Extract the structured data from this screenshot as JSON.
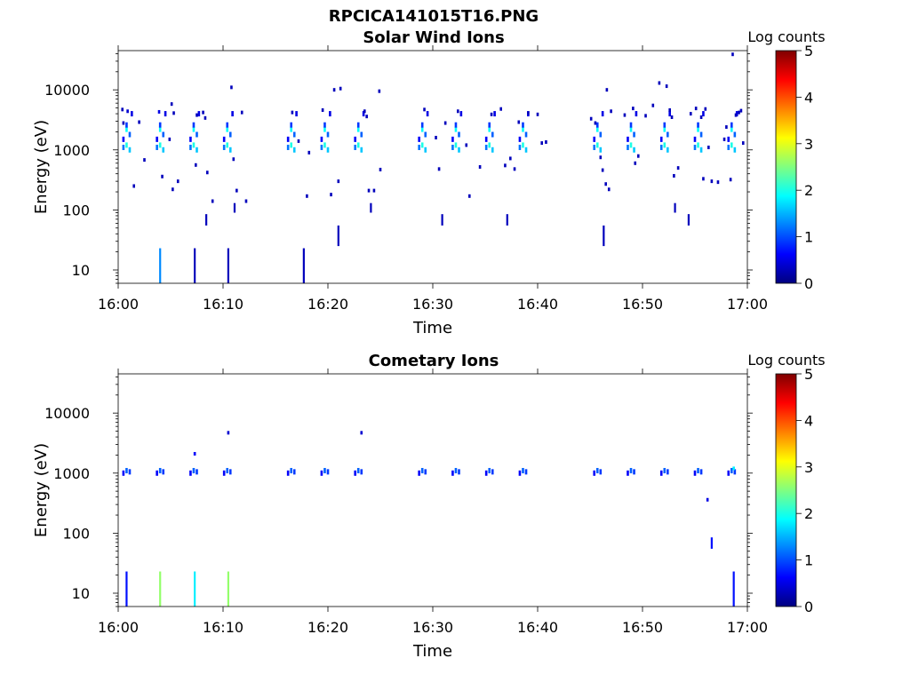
{
  "figure_title": "RPCICA141015T16.PNG",
  "colors": {
    "scale": [
      "#00007f",
      "#0000ff",
      "#0080ff",
      "#00ffff",
      "#80ff80",
      "#ffff00",
      "#ff8000",
      "#ff0000",
      "#7f0000"
    ],
    "axis": "#000000",
    "background": "#ffffff"
  },
  "chart_data": [
    {
      "type": "heatmap",
      "title": "Solar Wind Ions",
      "xlabel": "Time",
      "ylabel": "Energy (eV)",
      "x_ticks": [
        "16:00",
        "16:10",
        "16:20",
        "16:30",
        "16:40",
        "16:50",
        "17:00"
      ],
      "xlim_minutes": [
        0,
        60
      ],
      "y_scale": "log",
      "ylim": [
        6,
        45000
      ],
      "y_ticks": [
        10,
        100,
        1000,
        10000
      ],
      "y_tick_labels": [
        "10",
        "100",
        "1000",
        "10000"
      ],
      "colorbar": {
        "label": "Log counts",
        "range": [
          0,
          5
        ],
        "ticks": [
          "0",
          "1",
          "2",
          "3",
          "4",
          "5"
        ]
      },
      "grid": false,
      "lines": [
        {
          "t": 4.0,
          "e0": 6,
          "e1": 23,
          "v": 1.3
        },
        {
          "t": 7.3,
          "e0": 6,
          "e1": 23,
          "v": 0.3
        },
        {
          "t": 10.5,
          "e0": 6,
          "e1": 23,
          "v": 0.3
        },
        {
          "t": 17.7,
          "e0": 6,
          "e1": 23,
          "v": 0.3
        },
        {
          "t": 8.4,
          "e0": 55,
          "e1": 85,
          "v": 0.3
        },
        {
          "t": 11.1,
          "e0": 90,
          "e1": 130,
          "v": 0.3
        },
        {
          "t": 21.0,
          "e0": 25,
          "e1": 55,
          "v": 0.3
        },
        {
          "t": 24.1,
          "e0": 90,
          "e1": 130,
          "v": 0.3
        },
        {
          "t": 30.9,
          "e0": 55,
          "e1": 85,
          "v": 0.3
        },
        {
          "t": 37.1,
          "e0": 55,
          "e1": 85,
          "v": 0.3
        },
        {
          "t": 46.3,
          "e0": 25,
          "e1": 55,
          "v": 0.3
        },
        {
          "t": 54.4,
          "e0": 55,
          "e1": 85,
          "v": 0.3
        },
        {
          "t": 53.1,
          "e0": 90,
          "e1": 130,
          "v": 0.3
        }
      ],
      "bursts": [
        0.8,
        4.0,
        7.2,
        10.4,
        16.5,
        19.7,
        22.9,
        29.0,
        32.2,
        35.4,
        38.6,
        45.7,
        48.9,
        52.1,
        55.3,
        58.5
      ],
      "burst_cells": [
        {
          "dt": 0,
          "e": 1200,
          "v": 2.0
        },
        {
          "dt": 0.3,
          "e": 1000,
          "v": 1.6
        },
        {
          "dt": -0.3,
          "e": 1100,
          "v": 1.2
        },
        {
          "dt": 0,
          "e": 2200,
          "v": 1.9
        },
        {
          "dt": 0.3,
          "e": 1800,
          "v": 1.1
        },
        {
          "dt": 0,
          "e": 2600,
          "v": 0.9
        },
        {
          "dt": -0.3,
          "e": 1500,
          "v": 0.6
        },
        {
          "dt": 0.5,
          "e": 4000,
          "v": 0.5
        }
      ],
      "scatter": [
        {
          "t": 0.4,
          "e": 4700,
          "v": 0.3
        },
        {
          "t": 0.9,
          "e": 4400,
          "v": 0.4
        },
        {
          "t": 0.5,
          "e": 2800,
          "v": 0.3
        },
        {
          "t": 1.5,
          "e": 250,
          "v": 0.3
        },
        {
          "t": 2.0,
          "e": 2900,
          "v": 0.3
        },
        {
          "t": 2.5,
          "e": 680,
          "v": 0.3
        },
        {
          "t": 3.9,
          "e": 4300,
          "v": 0.5
        },
        {
          "t": 4.2,
          "e": 360,
          "v": 0.3
        },
        {
          "t": 5.1,
          "e": 5800,
          "v": 0.3
        },
        {
          "t": 5.3,
          "e": 4100,
          "v": 0.3
        },
        {
          "t": 5.7,
          "e": 300,
          "v": 0.3
        },
        {
          "t": 4.9,
          "e": 1500,
          "v": 0.3
        },
        {
          "t": 5.2,
          "e": 220,
          "v": 0.3
        },
        {
          "t": 7.5,
          "e": 3800,
          "v": 0.3
        },
        {
          "t": 8.1,
          "e": 4200,
          "v": 0.3
        },
        {
          "t": 8.3,
          "e": 3400,
          "v": 0.3
        },
        {
          "t": 7.4,
          "e": 560,
          "v": 0.3
        },
        {
          "t": 8.5,
          "e": 420,
          "v": 0.3
        },
        {
          "t": 9.0,
          "e": 140,
          "v": 0.3
        },
        {
          "t": 10.8,
          "e": 11000,
          "v": 0.3
        },
        {
          "t": 11.0,
          "e": 700,
          "v": 0.3
        },
        {
          "t": 11.3,
          "e": 210,
          "v": 0.3
        },
        {
          "t": 11.8,
          "e": 4200,
          "v": 0.3
        },
        {
          "t": 12.2,
          "e": 140,
          "v": 0.3
        },
        {
          "t": 16.6,
          "e": 4200,
          "v": 0.3
        },
        {
          "t": 17.2,
          "e": 1400,
          "v": 0.3
        },
        {
          "t": 18.0,
          "e": 170,
          "v": 0.3
        },
        {
          "t": 18.2,
          "e": 900,
          "v": 0.3
        },
        {
          "t": 19.5,
          "e": 4600,
          "v": 0.3
        },
        {
          "t": 20.3,
          "e": 180,
          "v": 0.3
        },
        {
          "t": 20.6,
          "e": 10000,
          "v": 0.3
        },
        {
          "t": 21.2,
          "e": 10500,
          "v": 0.3
        },
        {
          "t": 21.0,
          "e": 300,
          "v": 0.3
        },
        {
          "t": 23.5,
          "e": 4400,
          "v": 0.3
        },
        {
          "t": 23.7,
          "e": 3600,
          "v": 0.3
        },
        {
          "t": 23.9,
          "e": 210,
          "v": 0.3
        },
        {
          "t": 24.4,
          "e": 210,
          "v": 0.3
        },
        {
          "t": 24.9,
          "e": 9500,
          "v": 0.3
        },
        {
          "t": 25.0,
          "e": 470,
          "v": 0.3
        },
        {
          "t": 29.2,
          "e": 4700,
          "v": 0.3
        },
        {
          "t": 30.3,
          "e": 1600,
          "v": 0.3
        },
        {
          "t": 30.6,
          "e": 480,
          "v": 0.3
        },
        {
          "t": 31.2,
          "e": 2800,
          "v": 0.3
        },
        {
          "t": 32.4,
          "e": 4400,
          "v": 0.3
        },
        {
          "t": 33.2,
          "e": 1200,
          "v": 0.3
        },
        {
          "t": 33.5,
          "e": 170,
          "v": 0.3
        },
        {
          "t": 34.5,
          "e": 520,
          "v": 0.3
        },
        {
          "t": 35.6,
          "e": 3900,
          "v": 0.3
        },
        {
          "t": 36.5,
          "e": 4800,
          "v": 0.3
        },
        {
          "t": 36.9,
          "e": 550,
          "v": 0.3
        },
        {
          "t": 37.4,
          "e": 720,
          "v": 0.3
        },
        {
          "t": 37.8,
          "e": 480,
          "v": 0.3
        },
        {
          "t": 38.2,
          "e": 2900,
          "v": 0.3
        },
        {
          "t": 39.1,
          "e": 4100,
          "v": 0.3
        },
        {
          "t": 40.4,
          "e": 1300,
          "v": 0.3
        },
        {
          "t": 40.0,
          "e": 3900,
          "v": 0.3
        },
        {
          "t": 40.8,
          "e": 1350,
          "v": 0.3
        },
        {
          "t": 45.1,
          "e": 3300,
          "v": 0.3
        },
        {
          "t": 45.5,
          "e": 2800,
          "v": 0.3
        },
        {
          "t": 46.0,
          "e": 750,
          "v": 0.3
        },
        {
          "t": 46.2,
          "e": 460,
          "v": 0.3
        },
        {
          "t": 46.6,
          "e": 10000,
          "v": 0.3
        },
        {
          "t": 47.0,
          "e": 4400,
          "v": 0.3
        },
        {
          "t": 46.8,
          "e": 220,
          "v": 0.3
        },
        {
          "t": 46.5,
          "e": 270,
          "v": 0.3
        },
        {
          "t": 48.3,
          "e": 3800,
          "v": 0.3
        },
        {
          "t": 49.1,
          "e": 4900,
          "v": 0.3
        },
        {
          "t": 49.6,
          "e": 790,
          "v": 0.3
        },
        {
          "t": 50.3,
          "e": 3700,
          "v": 0.3
        },
        {
          "t": 49.3,
          "e": 600,
          "v": 0.3
        },
        {
          "t": 51.0,
          "e": 5500,
          "v": 0.3
        },
        {
          "t": 51.6,
          "e": 13000,
          "v": 0.3
        },
        {
          "t": 52.3,
          "e": 11500,
          "v": 0.3
        },
        {
          "t": 52.6,
          "e": 4600,
          "v": 0.3
        },
        {
          "t": 52.8,
          "e": 3500,
          "v": 0.3
        },
        {
          "t": 53.0,
          "e": 370,
          "v": 0.3
        },
        {
          "t": 53.4,
          "e": 500,
          "v": 0.3
        },
        {
          "t": 54.6,
          "e": 4000,
          "v": 0.3
        },
        {
          "t": 55.1,
          "e": 4900,
          "v": 0.3
        },
        {
          "t": 55.6,
          "e": 3500,
          "v": 0.3
        },
        {
          "t": 56.0,
          "e": 4800,
          "v": 0.3
        },
        {
          "t": 56.3,
          "e": 1100,
          "v": 0.3
        },
        {
          "t": 55.8,
          "e": 330,
          "v": 0.3
        },
        {
          "t": 56.6,
          "e": 300,
          "v": 0.3
        },
        {
          "t": 57.2,
          "e": 290,
          "v": 0.3
        },
        {
          "t": 57.8,
          "e": 1500,
          "v": 0.3
        },
        {
          "t": 58.0,
          "e": 2400,
          "v": 0.3
        },
        {
          "t": 58.4,
          "e": 320,
          "v": 0.3
        },
        {
          "t": 58.9,
          "e": 3800,
          "v": 0.3
        },
        {
          "t": 59.2,
          "e": 4200,
          "v": 0.3
        },
        {
          "t": 59.6,
          "e": 1300,
          "v": 0.3
        },
        {
          "t": 58.6,
          "e": 39000,
          "v": 0.3
        },
        {
          "t": 59.4,
          "e": 4500,
          "v": 0.3
        }
      ]
    },
    {
      "type": "heatmap",
      "title": "Cometary Ions",
      "xlabel": "Time",
      "ylabel": "Energy (eV)",
      "x_ticks": [
        "16:00",
        "16:10",
        "16:20",
        "16:30",
        "16:40",
        "16:50",
        "17:00"
      ],
      "xlim_minutes": [
        0,
        60
      ],
      "y_scale": "log",
      "ylim": [
        6,
        45000
      ],
      "y_ticks": [
        10,
        100,
        1000,
        10000
      ],
      "y_tick_labels": [
        "10",
        "100",
        "1000",
        "10000"
      ],
      "colorbar": {
        "label": "Log counts",
        "range": [
          0,
          5
        ],
        "ticks": [
          "0",
          "1",
          "2",
          "3",
          "4",
          "5"
        ]
      },
      "grid": false,
      "lines": [
        {
          "t": 0.8,
          "e0": 6,
          "e1": 23,
          "v": 0.7
        },
        {
          "t": 4.0,
          "e0": 6,
          "e1": 23,
          "v": 2.6
        },
        {
          "t": 7.3,
          "e0": 6,
          "e1": 23,
          "v": 1.8
        },
        {
          "t": 10.5,
          "e0": 6,
          "e1": 23,
          "v": 2.6
        },
        {
          "t": 58.7,
          "e0": 6,
          "e1": 23,
          "v": 0.7
        },
        {
          "t": 56.6,
          "e0": 55,
          "e1": 85,
          "v": 0.7
        }
      ],
      "bursts": [
        0.8,
        4.0,
        7.2,
        10.4,
        16.5,
        19.7,
        22.9,
        29.0,
        32.2,
        35.4,
        38.6,
        45.7,
        48.9,
        52.1,
        55.3,
        58.5
      ],
      "burst_cells": [
        {
          "dt": 0,
          "e": 1100,
          "v": 1.1
        },
        {
          "dt": 0.3,
          "e": 1050,
          "v": 0.9
        },
        {
          "dt": -0.3,
          "e": 1000,
          "v": 0.6
        }
      ],
      "scatter": [
        {
          "t": 7.3,
          "e": 2100,
          "v": 0.6
        },
        {
          "t": 10.5,
          "e": 4700,
          "v": 0.4
        },
        {
          "t": 23.2,
          "e": 4700,
          "v": 0.4
        },
        {
          "t": 56.2,
          "e": 360,
          "v": 0.5
        },
        {
          "t": 58.7,
          "e": 1200,
          "v": 1.8
        }
      ]
    }
  ]
}
